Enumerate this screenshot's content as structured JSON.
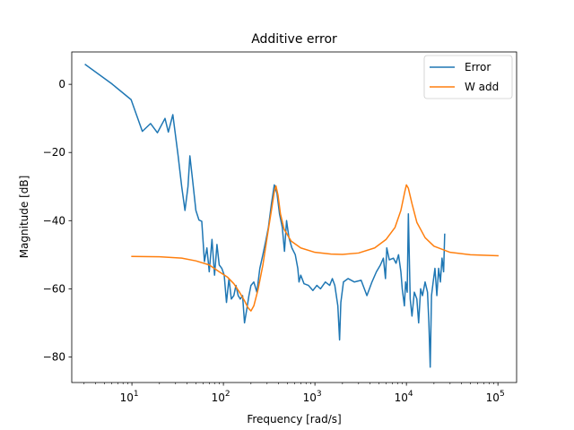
{
  "chart_data": {
    "type": "line",
    "title": "Additive error",
    "xlabel": "Frequency [rad/s]",
    "ylabel": "Magnitude [dB]",
    "xscale": "log",
    "xlim": [
      2.2,
      160000
    ],
    "ylim": [
      -87.5,
      9.5
    ],
    "xticks": [
      {
        "value": 10,
        "base": "10",
        "exp": "1"
      },
      {
        "value": 100,
        "base": "10",
        "exp": "2"
      },
      {
        "value": 1000,
        "base": "10",
        "exp": "3"
      },
      {
        "value": 10000,
        "base": "10",
        "exp": "4"
      },
      {
        "value": 100000,
        "base": "10",
        "exp": "5"
      }
    ],
    "yticks": [
      {
        "value": 0,
        "label": "0"
      },
      {
        "value": -20,
        "label": "−20"
      },
      {
        "value": -40,
        "label": "−40"
      },
      {
        "value": -60,
        "label": "−60"
      },
      {
        "value": -80,
        "label": "−80"
      }
    ],
    "grid": false,
    "legend_position": "top-right",
    "series": [
      {
        "name": "Error",
        "color": "#1f77b4",
        "points": [
          [
            3.1,
            5.8
          ],
          [
            6,
            0.2
          ],
          [
            9.8,
            -4.5
          ],
          [
            13,
            -13.8
          ],
          [
            16,
            -11.5
          ],
          [
            19,
            -14.2
          ],
          [
            23,
            -10.0
          ],
          [
            25,
            -14.0
          ],
          [
            28,
            -8.9
          ],
          [
            32,
            -21.0
          ],
          [
            35,
            -30.0
          ],
          [
            38,
            -37.0
          ],
          [
            41,
            -30.0
          ],
          [
            43,
            -21.0
          ],
          [
            46,
            -28.0
          ],
          [
            50,
            -37.0
          ],
          [
            54,
            -39.8
          ],
          [
            58,
            -40.2
          ],
          [
            62,
            -52.0
          ],
          [
            66,
            -48.0
          ],
          [
            70,
            -55.0
          ],
          [
            75,
            -45.5
          ],
          [
            80,
            -56.0
          ],
          [
            85,
            -47.0
          ],
          [
            90,
            -53.0
          ],
          [
            96,
            -54.0
          ],
          [
            102,
            -56.0
          ],
          [
            108,
            -64.0
          ],
          [
            115,
            -57.0
          ],
          [
            122,
            -63.0
          ],
          [
            130,
            -62.0
          ],
          [
            137,
            -59.0
          ],
          [
            145,
            -62.0
          ],
          [
            153,
            -63.0
          ],
          [
            162,
            -62.0
          ],
          [
            170,
            -70.0
          ],
          [
            180,
            -66.0
          ],
          [
            190,
            -62.0
          ],
          [
            200,
            -59.0
          ],
          [
            215,
            -58.0
          ],
          [
            232,
            -61.0
          ],
          [
            250,
            -54.0
          ],
          [
            270,
            -50.0
          ],
          [
            290,
            -46.0
          ],
          [
            310,
            -42.0
          ],
          [
            335,
            -35.0
          ],
          [
            360,
            -29.5
          ],
          [
            385,
            -32.0
          ],
          [
            410,
            -38.0
          ],
          [
            440,
            -42.0
          ],
          [
            465,
            -49.0
          ],
          [
            490,
            -40.0
          ],
          [
            520,
            -45.0
          ],
          [
            560,
            -48.0
          ],
          [
            610,
            -50.0
          ],
          [
            650,
            -54.0
          ],
          [
            670,
            -58.0
          ],
          [
            700,
            -56.0
          ],
          [
            760,
            -58.5
          ],
          [
            850,
            -59.0
          ],
          [
            950,
            -60.5
          ],
          [
            1050,
            -59.0
          ],
          [
            1150,
            -60.0
          ],
          [
            1300,
            -58.0
          ],
          [
            1450,
            -59.0
          ],
          [
            1550,
            -57.0
          ],
          [
            1650,
            -59.0
          ],
          [
            1780,
            -65.0
          ],
          [
            1860,
            -75.0
          ],
          [
            1920,
            -64.0
          ],
          [
            2050,
            -58.0
          ],
          [
            2300,
            -57.0
          ],
          [
            2700,
            -58.0
          ],
          [
            3200,
            -57.5
          ],
          [
            3700,
            -62.0
          ],
          [
            4200,
            -58.0
          ],
          [
            4700,
            -55.0
          ],
          [
            5200,
            -53.0
          ],
          [
            5600,
            -51.0
          ],
          [
            5900,
            -57.0
          ],
          [
            6100,
            -48.0
          ],
          [
            6500,
            -51.5
          ],
          [
            7200,
            -51.0
          ],
          [
            7700,
            -52.5
          ],
          [
            8200,
            -50.0
          ],
          [
            8700,
            -55.0
          ],
          [
            9000,
            -60.0
          ],
          [
            9500,
            -65.0
          ],
          [
            9800,
            -58.0
          ],
          [
            10200,
            -61.0
          ],
          [
            10500,
            -38.0
          ],
          [
            11000,
            -63.0
          ],
          [
            11500,
            -68.0
          ],
          [
            12200,
            -61.0
          ],
          [
            13000,
            -63.0
          ],
          [
            13600,
            -70.0
          ],
          [
            14300,
            -60.0
          ],
          [
            15000,
            -62.0
          ],
          [
            16000,
            -58.0
          ],
          [
            17000,
            -61.0
          ],
          [
            17600,
            -70.0
          ],
          [
            18200,
            -83.0
          ],
          [
            18800,
            -62.0
          ],
          [
            19600,
            -58.0
          ],
          [
            20500,
            -54.0
          ],
          [
            21500,
            -62.0
          ],
          [
            22500,
            -54.0
          ],
          [
            23500,
            -58.0
          ],
          [
            24500,
            -51.0
          ],
          [
            25500,
            -55.0
          ],
          [
            26200,
            -44.0
          ]
        ]
      },
      {
        "name": "W add",
        "color": "#ff7f0e",
        "points": [
          [
            10,
            -50.5
          ],
          [
            20,
            -50.6
          ],
          [
            35,
            -51.0
          ],
          [
            50,
            -51.8
          ],
          [
            70,
            -53.0
          ],
          [
            90,
            -55.0
          ],
          [
            110,
            -56.5
          ],
          [
            130,
            -58.5
          ],
          [
            150,
            -61.0
          ],
          [
            170,
            -63.5
          ],
          [
            185,
            -65.5
          ],
          [
            200,
            -66.5
          ],
          [
            215,
            -65.0
          ],
          [
            240,
            -60.0
          ],
          [
            270,
            -53.0
          ],
          [
            300,
            -45.0
          ],
          [
            330,
            -38.0
          ],
          [
            360,
            -31.5
          ],
          [
            375,
            -29.8
          ],
          [
            395,
            -32.5
          ],
          [
            420,
            -38.0
          ],
          [
            460,
            -42.5
          ],
          [
            550,
            -46.0
          ],
          [
            700,
            -48.0
          ],
          [
            1000,
            -49.3
          ],
          [
            1500,
            -49.8
          ],
          [
            2000,
            -49.9
          ],
          [
            3000,
            -49.5
          ],
          [
            4500,
            -48.0
          ],
          [
            6000,
            -45.5
          ],
          [
            7500,
            -42.0
          ],
          [
            8700,
            -37.0
          ],
          [
            9600,
            -31.5
          ],
          [
            10000,
            -29.5
          ],
          [
            10500,
            -30.5
          ],
          [
            11500,
            -35.0
          ],
          [
            13000,
            -40.5
          ],
          [
            16000,
            -45.0
          ],
          [
            20000,
            -47.5
          ],
          [
            30000,
            -49.3
          ],
          [
            50000,
            -50.0
          ],
          [
            100000,
            -50.3
          ]
        ]
      }
    ]
  }
}
